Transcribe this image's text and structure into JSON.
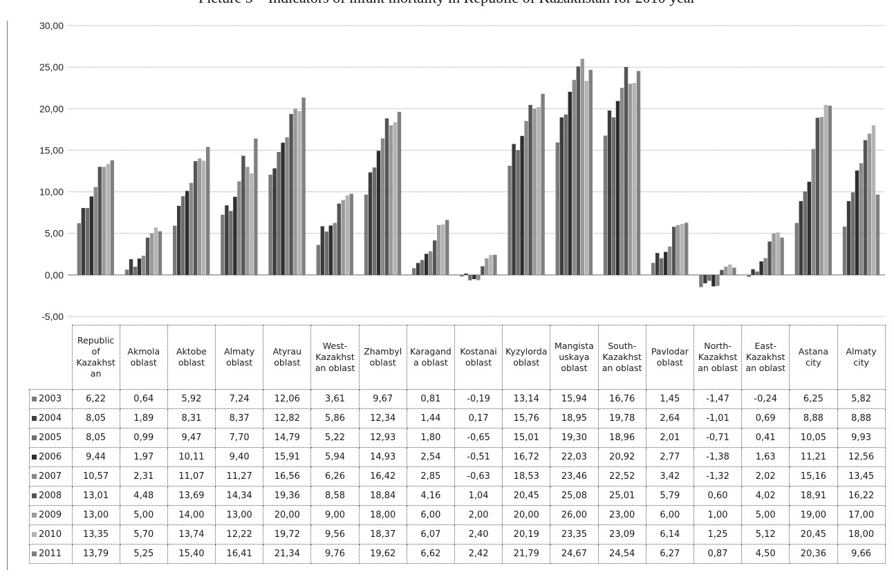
{
  "chart_data": {
    "type": "bar",
    "title": "Picture 5 – Indicators of infant mortality in Republic of Kazakhstan for 2010 year",
    "ylim": [
      -5,
      30
    ],
    "yticks": [
      "30,00",
      "25,00",
      "20,00",
      "15,00",
      "10,00",
      "5,00",
      "0,00",
      "-5,00"
    ],
    "ytick_values": [
      30,
      25,
      20,
      15,
      10,
      5,
      0,
      -5
    ],
    "grid": true,
    "legend_placement": "data-table-left",
    "categories": [
      "Republic of Kazakhstan",
      "Akmola oblast",
      "Aktobe oblast",
      "Almaty oblast",
      "Atyrau oblast",
      "West-Kazakhstan oblast",
      "Zhambyl oblast",
      "Karaganda oblast",
      "Kostanai oblast",
      "Kyzylorda oblast",
      "Mangistauskaya oblast",
      "South-Kazakhstan oblast",
      "Pavlodar oblast",
      "North-Kazakhstan oblast",
      "East-Kazakhstan oblast",
      "Astana city",
      "Almaty city"
    ],
    "category_lines": [
      [
        "Republic",
        "of",
        "Kazakhst",
        "an"
      ],
      [
        "Akmola",
        "oblast"
      ],
      [
        "Aktobe",
        "oblast"
      ],
      [
        "Almaty",
        "oblast"
      ],
      [
        "Atyrau",
        "oblast"
      ],
      [
        "West-",
        "Kazakhst",
        "an oblast"
      ],
      [
        "Zhambyl",
        "oblast"
      ],
      [
        "Karagand",
        "a oblast"
      ],
      [
        "Kostanai",
        "oblast"
      ],
      [
        "Kyzylorda",
        "oblast"
      ],
      [
        "Mangista",
        "uskaya",
        "oblast"
      ],
      [
        "South-",
        "Kazakhst",
        "an oblast"
      ],
      [
        "Pavlodar",
        "oblast"
      ],
      [
        "North-",
        "Kazakhst",
        "an oblast"
      ],
      [
        "East-",
        "Kazakhst",
        "an oblast"
      ],
      [
        "Astana",
        "city"
      ],
      [
        "Almaty",
        "city"
      ]
    ],
    "series": [
      {
        "name": "2003",
        "color": "#7a7a7a",
        "values": [
          6.22,
          0.64,
          5.92,
          7.24,
          12.06,
          3.61,
          9.67,
          0.81,
          -0.19,
          13.14,
          15.94,
          16.76,
          1.45,
          -1.47,
          -0.24,
          6.25,
          5.82
        ],
        "labels": [
          "6,22",
          "0,64",
          "5,92",
          "7,24",
          "12,06",
          "3,61",
          "9,67",
          "0,81",
          "-0,19",
          "13,14",
          "15,94",
          "16,76",
          "1,45",
          "-1,47",
          "-0,24",
          "6,25",
          "5,82"
        ]
      },
      {
        "name": "2004",
        "color": "#3c3c3c",
        "values": [
          8.05,
          1.89,
          8.31,
          8.37,
          12.82,
          5.86,
          12.34,
          1.44,
          0.17,
          15.76,
          18.95,
          19.78,
          2.64,
          -1.01,
          0.69,
          8.88,
          8.88
        ],
        "labels": [
          "8,05",
          "1,89",
          "8,31",
          "8,37",
          "12,82",
          "5,86",
          "12,34",
          "1,44",
          "0,17",
          "15,76",
          "18,95",
          "19,78",
          "2,64",
          "-1,01",
          "0,69",
          "8,88",
          "8,88"
        ]
      },
      {
        "name": "2005",
        "color": "#6e6e6e",
        "values": [
          8.05,
          0.99,
          9.47,
          7.7,
          14.79,
          5.22,
          12.93,
          1.8,
          -0.65,
          15.01,
          19.3,
          18.96,
          2.01,
          -0.71,
          0.41,
          10.05,
          9.93
        ],
        "labels": [
          "8,05",
          "0,99",
          "9,47",
          "7,70",
          "14,79",
          "5,22",
          "12,93",
          "1,80",
          "-0,65",
          "15,01",
          "19,30",
          "18,96",
          "2,01",
          "-0,71",
          "0,41",
          "10,05",
          "9,93"
        ]
      },
      {
        "name": "2006",
        "color": "#2e2e2e",
        "values": [
          9.44,
          1.97,
          10.11,
          9.4,
          15.91,
          5.94,
          14.93,
          2.54,
          -0.51,
          16.72,
          22.03,
          20.92,
          2.77,
          -1.38,
          1.63,
          11.21,
          12.56
        ],
        "labels": [
          "9,44",
          "1,97",
          "10,11",
          "9,40",
          "15,91",
          "5,94",
          "14,93",
          "2,54",
          "-0,51",
          "16,72",
          "22,03",
          "20,92",
          "2,77",
          "-1,38",
          "1,63",
          "11,21",
          "12,56"
        ]
      },
      {
        "name": "2007",
        "color": "#8a8a8a",
        "values": [
          10.57,
          2.31,
          11.07,
          11.27,
          16.56,
          6.26,
          16.42,
          2.85,
          -0.63,
          18.53,
          23.46,
          22.52,
          3.42,
          -1.32,
          2.02,
          15.16,
          13.45
        ],
        "labels": [
          "10,57",
          "2,31",
          "11,07",
          "11,27",
          "16,56",
          "6,26",
          "16,42",
          "2,85",
          "-0,63",
          "18,53",
          "23,46",
          "22,52",
          "3,42",
          "-1,32",
          "2,02",
          "15,16",
          "13,45"
        ]
      },
      {
        "name": "2008",
        "color": "#555555",
        "values": [
          13.01,
          4.48,
          13.69,
          14.34,
          19.36,
          8.58,
          18.84,
          4.16,
          1.04,
          20.45,
          25.08,
          25.01,
          5.79,
          0.6,
          4.02,
          18.91,
          16.22
        ],
        "labels": [
          "13,01",
          "4,48",
          "13,69",
          "14,34",
          "19,36",
          "8,58",
          "18,84",
          "4,16",
          "1,04",
          "20,45",
          "25,08",
          "25,01",
          "5,79",
          "0,60",
          "4,02",
          "18,91",
          "16,22"
        ]
      },
      {
        "name": "2009",
        "color": "#9a9a9a",
        "values": [
          13.0,
          5.0,
          14.0,
          13.0,
          20.0,
          9.0,
          18.0,
          6.0,
          2.0,
          20.0,
          26.0,
          23.0,
          6.0,
          1.0,
          5.0,
          19.0,
          17.0
        ],
        "labels": [
          "13,00",
          "5,00",
          "14,00",
          "13,00",
          "20,00",
          "9,00",
          "18,00",
          "6,00",
          "2,00",
          "20,00",
          "26,00",
          "23,00",
          "6,00",
          "1,00",
          "5,00",
          "19,00",
          "17,00"
        ]
      },
      {
        "name": "2010",
        "color": "#b4b4b4",
        "values": [
          13.35,
          5.7,
          13.74,
          12.22,
          19.72,
          9.56,
          18.37,
          6.07,
          2.4,
          20.19,
          23.35,
          23.09,
          6.14,
          1.25,
          5.12,
          20.45,
          18.0
        ],
        "labels": [
          "13,35",
          "5,70",
          "13,74",
          "12,22",
          "19,72",
          "9,56",
          "18,37",
          "6,07",
          "2,40",
          "20,19",
          "23,35",
          "23,09",
          "6,14",
          "1,25",
          "5,12",
          "20,45",
          "18,00"
        ]
      },
      {
        "name": "2011",
        "color": "#808080",
        "values": [
          13.79,
          5.25,
          15.4,
          16.41,
          21.34,
          9.76,
          19.62,
          6.62,
          2.42,
          21.79,
          24.67,
          24.54,
          6.27,
          0.87,
          4.5,
          20.36,
          9.66
        ],
        "labels": [
          "13,79",
          "5,25",
          "15,40",
          "16,41",
          "21,34",
          "9,76",
          "19,62",
          "6,62",
          "2,42",
          "21,79",
          "24,67",
          "24,54",
          "6,27",
          "0,87",
          "4,50",
          "20,36",
          "9,66"
        ]
      }
    ]
  }
}
